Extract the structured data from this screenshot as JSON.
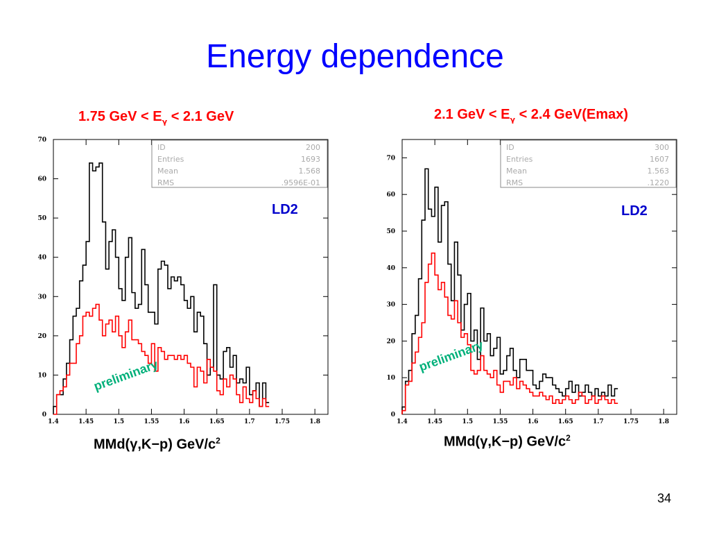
{
  "slide": {
    "title": "Energy dependence",
    "page_number": "34"
  },
  "chart_data": [
    {
      "type": "histogram",
      "title_prefix": "1.75 GeV < E",
      "title_subscript": "γ",
      "title_suffix": " < 2.1 GeV",
      "xlabel_prefix": "MMd(γ,K",
      "xlabel_minus": "−",
      "xlabel_middle": "p) GeV/c",
      "xlabel_sup": "2",
      "xlim": [
        1.4,
        1.82
      ],
      "ylim": [
        0,
        70
      ],
      "x_ticks": [
        1.4,
        1.45,
        1.5,
        1.55,
        1.6,
        1.65,
        1.7,
        1.75,
        1.8
      ],
      "x_tick_labels": [
        "1.4",
        "1.45",
        "1.5",
        "1.55",
        "1.6",
        "1.65",
        "1.7",
        "1.75",
        "1.8"
      ],
      "y_ticks": [
        0,
        10,
        20,
        30,
        40,
        50,
        60,
        70
      ],
      "y_tick_labels": [
        "0",
        "10",
        "20",
        "30",
        "40",
        "50",
        "60",
        "70"
      ],
      "bin_start": 1.4,
      "bin_width": 0.005,
      "series": [
        {
          "color": "#000000",
          "values": [
            2,
            5,
            5,
            9,
            13,
            19,
            25,
            27,
            34,
            38,
            44,
            64,
            62,
            63,
            64,
            49,
            37,
            44,
            47,
            40,
            32,
            29,
            40,
            45,
            31,
            27,
            28,
            42,
            33,
            26,
            26,
            23,
            37,
            39,
            38,
            32,
            35,
            34,
            35,
            33,
            29,
            27,
            30,
            21,
            26,
            25,
            18,
            10,
            12,
            33,
            10,
            9,
            16,
            17,
            12,
            15,
            8,
            9,
            8,
            12,
            5,
            6,
            8,
            2,
            8,
            3
          ]
        },
        {
          "color": "#ff0000",
          "values": [
            0,
            5,
            6,
            7,
            10,
            13,
            13,
            18,
            20,
            25,
            26,
            25,
            27,
            28,
            24,
            20,
            23,
            24,
            21,
            25,
            20,
            17,
            21,
            24,
            19,
            19,
            18,
            16,
            15,
            13,
            18,
            11,
            17,
            16,
            14,
            15,
            15,
            14,
            15,
            14,
            15,
            13,
            12,
            7,
            12,
            11,
            8,
            14,
            12,
            11,
            6,
            5,
            9,
            7,
            10,
            9,
            5,
            3,
            7,
            4,
            3,
            6,
            4,
            2,
            4,
            2
          ]
        }
      ],
      "stats_box": {
        "rows": [
          {
            "label": "ID",
            "value": "200"
          },
          {
            "label": "Entries",
            "value": "1693"
          },
          {
            "label": "Mean",
            "value": "1.568"
          },
          {
            "label": "RMS",
            "value": ".9596E-01"
          }
        ]
      },
      "annotations": [
        "LD2",
        "preliminary"
      ]
    },
    {
      "type": "histogram",
      "title_prefix": "2.1 GeV < E",
      "title_subscript": "γ",
      "title_suffix": " < 2.4 GeV(Emax)",
      "xlabel_prefix": "MMd(γ,K",
      "xlabel_minus": "−",
      "xlabel_middle": "p) GeV/c",
      "xlabel_sup": "2",
      "xlim": [
        1.4,
        1.82
      ],
      "ylim": [
        0,
        75
      ],
      "x_ticks": [
        1.4,
        1.45,
        1.5,
        1.55,
        1.6,
        1.65,
        1.7,
        1.75,
        1.8
      ],
      "x_tick_labels": [
        "1.4",
        "1.45",
        "1.5",
        "1.55",
        "1.6",
        "1.65",
        "1.7",
        "1.75",
        "1.8"
      ],
      "y_ticks": [
        0,
        10,
        20,
        30,
        40,
        50,
        60,
        70
      ],
      "y_tick_labels": [
        "0",
        "10",
        "20",
        "30",
        "40",
        "50",
        "60",
        "70"
      ],
      "bin_start": 1.4,
      "bin_width": 0.005,
      "series": [
        {
          "color": "#000000",
          "values": [
            2,
            9,
            12,
            22,
            27,
            37,
            53,
            67,
            56,
            54,
            62,
            47,
            57,
            58,
            41,
            31,
            47,
            38,
            23,
            30,
            33,
            20,
            23,
            15,
            29,
            20,
            22,
            16,
            18,
            21,
            11,
            12,
            16,
            18,
            12,
            10,
            15,
            15,
            12,
            12,
            8,
            7,
            9,
            11,
            10,
            10,
            8,
            7,
            6,
            5,
            7,
            9,
            6,
            8,
            5,
            6,
            8,
            6,
            5,
            7,
            5,
            6,
            5,
            8,
            5,
            7
          ]
        },
        {
          "color": "#ff0000",
          "values": [
            1,
            8,
            9,
            14,
            17,
            21,
            25,
            36,
            41,
            44,
            38,
            34,
            36,
            32,
            27,
            26,
            31,
            25,
            21,
            22,
            19,
            12,
            11,
            12,
            16,
            12,
            11,
            10,
            12,
            8,
            6,
            9,
            9,
            8,
            10,
            7,
            9,
            8,
            7,
            6,
            5,
            5,
            6,
            5,
            4,
            5,
            3,
            4,
            3,
            4,
            5,
            4,
            3,
            4,
            6,
            5,
            3,
            4,
            5,
            3,
            4,
            5,
            4,
            3,
            4,
            3
          ]
        }
      ],
      "stats_box": {
        "rows": [
          {
            "label": "ID",
            "value": "300"
          },
          {
            "label": "Entries",
            "value": "1607"
          },
          {
            "label": "Mean",
            "value": "1.563"
          },
          {
            "label": "RMS",
            "value": ".1220"
          }
        ]
      },
      "annotations": [
        "LD2",
        "preliminary"
      ]
    }
  ]
}
